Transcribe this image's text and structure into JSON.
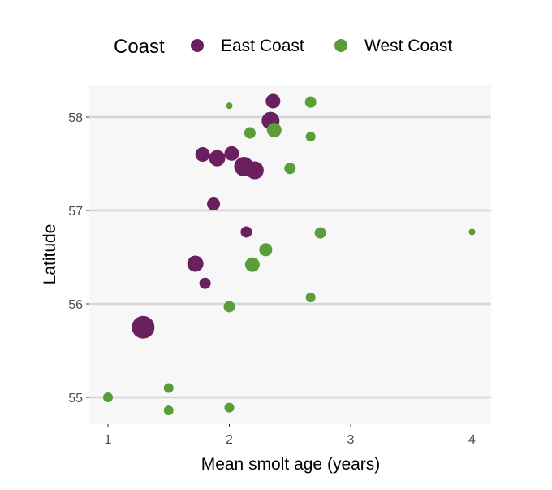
{
  "chart_data": {
    "type": "scatter",
    "title": "",
    "xlabel": "Mean smolt age (years)",
    "ylabel": "Latitude",
    "xlim": [
      0.85,
      4.15
    ],
    "ylim": [
      54.7,
      58.33
    ],
    "xticks": [
      1,
      2,
      3,
      4
    ],
    "yticks": [
      55,
      56,
      57,
      58
    ],
    "grid": "major y only",
    "legend": {
      "title": "Coast",
      "placement": "top"
    },
    "series": [
      {
        "name": "East Coast",
        "color": "#6a1f5f",
        "points": [
          {
            "x": 2.36,
            "y": 58.17,
            "size": 81
          },
          {
            "x": 2.34,
            "y": 57.96,
            "size": 121
          },
          {
            "x": 1.78,
            "y": 57.6,
            "size": 81
          },
          {
            "x": 1.9,
            "y": 57.56,
            "size": 100
          },
          {
            "x": 2.02,
            "y": 57.61,
            "size": 81
          },
          {
            "x": 2.12,
            "y": 57.47,
            "size": 144
          },
          {
            "x": 2.21,
            "y": 57.43,
            "size": 121
          },
          {
            "x": 1.87,
            "y": 57.07,
            "size": 64
          },
          {
            "x": 2.14,
            "y": 56.77,
            "size": 49
          },
          {
            "x": 1.72,
            "y": 56.43,
            "size": 100
          },
          {
            "x": 1.8,
            "y": 56.22,
            "size": 49
          },
          {
            "x": 1.29,
            "y": 55.75,
            "size": 196
          }
        ]
      },
      {
        "name": "West Coast",
        "color": "#5a9e3a",
        "points": [
          {
            "x": 2.0,
            "y": 58.12,
            "size": 16
          },
          {
            "x": 2.67,
            "y": 58.16,
            "size": 49
          },
          {
            "x": 2.17,
            "y": 57.83,
            "size": 49
          },
          {
            "x": 2.37,
            "y": 57.86,
            "size": 81
          },
          {
            "x": 2.67,
            "y": 57.79,
            "size": 36
          },
          {
            "x": 2.5,
            "y": 57.45,
            "size": 49
          },
          {
            "x": 2.75,
            "y": 56.76,
            "size": 49
          },
          {
            "x": 4.0,
            "y": 56.77,
            "size": 16
          },
          {
            "x": 2.3,
            "y": 56.58,
            "size": 64
          },
          {
            "x": 2.19,
            "y": 56.42,
            "size": 81
          },
          {
            "x": 2.0,
            "y": 55.97,
            "size": 49
          },
          {
            "x": 2.67,
            "y": 56.07,
            "size": 36
          },
          {
            "x": 1.0,
            "y": 55.0,
            "size": 36
          },
          {
            "x": 1.5,
            "y": 55.1,
            "size": 36
          },
          {
            "x": 1.5,
            "y": 54.86,
            "size": 36
          },
          {
            "x": 2.0,
            "y": 54.89,
            "size": 36
          }
        ]
      }
    ]
  }
}
